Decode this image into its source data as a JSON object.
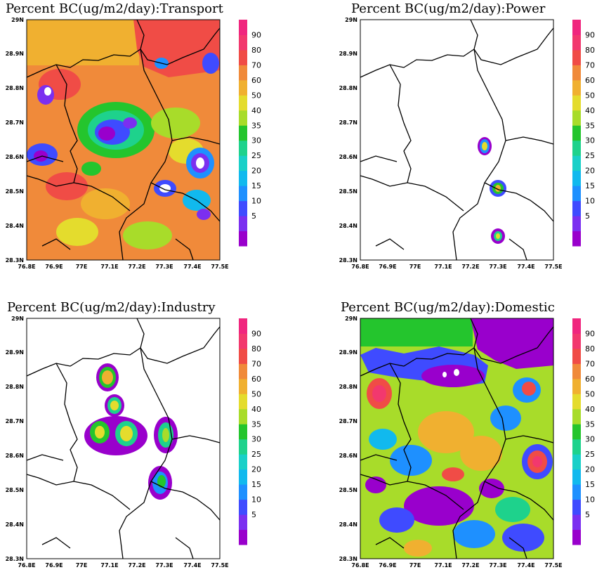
{
  "colorbar": {
    "labels": [
      "5",
      "10",
      "15",
      "20",
      "25",
      "30",
      "35",
      "40",
      "50",
      "60",
      "70",
      "80",
      "90"
    ],
    "colors": [
      "#9900cc",
      "#7b2ff0",
      "#3f4bff",
      "#1e90ff",
      "#11b9ee",
      "#19d0c8",
      "#1ed28c",
      "#24c52d",
      "#a8dc2a",
      "#e4dc2d",
      "#f0b030",
      "#f08a3a",
      "#f04c46",
      "#f2386e",
      "#f0267e"
    ]
  },
  "axes": {
    "x_ticks": [
      "76.8E",
      "76.9E",
      "77E",
      "77.1E",
      "77.2E",
      "77.3E",
      "77.4E",
      "77.5E"
    ],
    "y_ticks": [
      "29N",
      "28.9N",
      "28.8N",
      "28.7N",
      "28.6N",
      "28.5N",
      "28.4N",
      "28.3N"
    ]
  },
  "panels": [
    {
      "id": "transport",
      "title": "Percent BC(ug/m2/day):Transport"
    },
    {
      "id": "power",
      "title": "Percent BC(ug/m2/day):Power"
    },
    {
      "id": "industry",
      "title": "Percent BC(ug/m2/day):Industry"
    },
    {
      "id": "domestic",
      "title": "Percent BC(ug/m2/day):Domestic"
    }
  ]
}
